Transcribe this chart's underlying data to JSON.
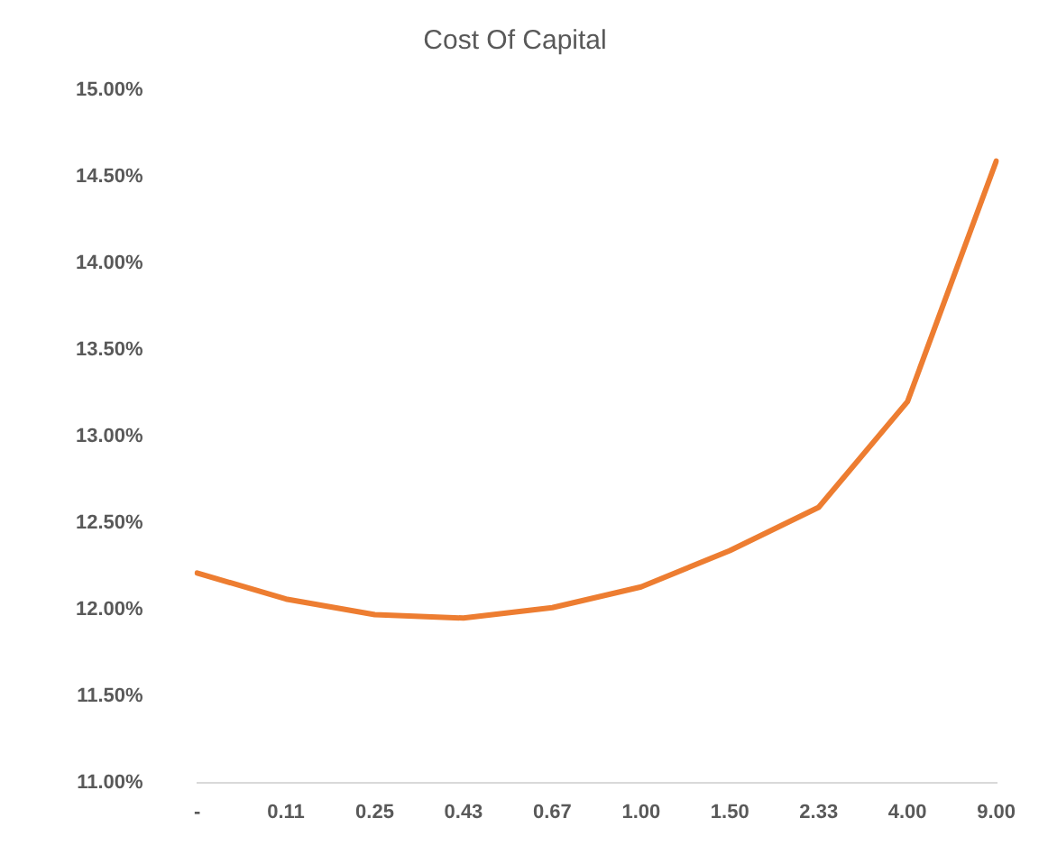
{
  "chart_data": {
    "type": "line",
    "title": "Cost Of Capital",
    "categories": [
      "-",
      "0.11",
      "0.25",
      "0.43",
      "0.67",
      "1.00",
      "1.50",
      "2.33",
      "4.00",
      "9.00"
    ],
    "series": [
      {
        "color": "#ed7d31",
        "values": [
          12.21,
          12.06,
          11.97,
          11.95,
          12.01,
          12.13,
          12.34,
          12.59,
          13.2,
          14.59
        ]
      }
    ],
    "ylim": [
      11,
      15
    ],
    "yticks": [
      {
        "value": 11,
        "label": "11.00%"
      },
      {
        "value": 11.5,
        "label": "11.50%"
      },
      {
        "value": 12,
        "label": "12.00%"
      },
      {
        "value": 12.5,
        "label": "12.50%"
      },
      {
        "value": 13,
        "label": "13.00%"
      },
      {
        "value": 13.5,
        "label": "13.50%"
      },
      {
        "value": 14,
        "label": "14.00%"
      },
      {
        "value": 14.5,
        "label": "14.50%"
      },
      {
        "value": 15,
        "label": "15.00%"
      }
    ],
    "grid": false,
    "legend": false,
    "marker": "none",
    "line_style": "solid"
  }
}
